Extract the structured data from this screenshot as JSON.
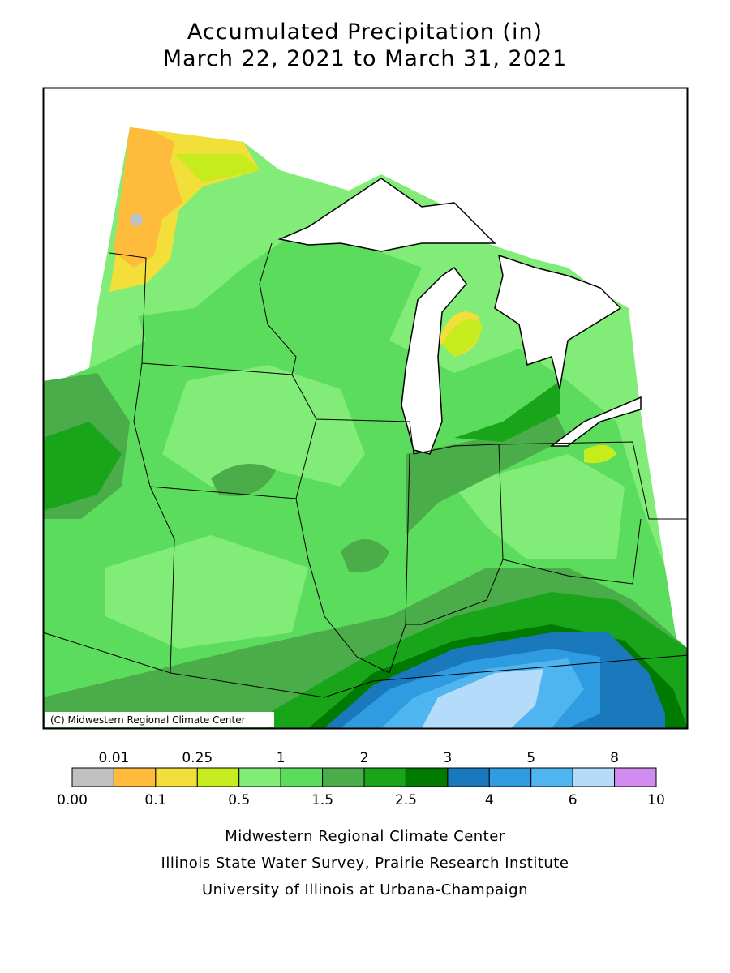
{
  "title": [
    "Accumulated Precipitation (in)",
    "March 22, 2021 to March 31, 2021"
  ],
  "credit": "(C) Midwestern Regional Climate Center",
  "legend": {
    "breaks": [
      {
        "value": 0,
        "label": "0.00"
      },
      0.01,
      0.1,
      0.25,
      0.5,
      1,
      1.5,
      2,
      2.5,
      3,
      4,
      5,
      6,
      8,
      10
    ],
    "colors": [
      "#c0c0c0",
      "#ffbb3c",
      "#f2df3a",
      "#c6ec1e",
      "#82ec78",
      "#5cdc5c",
      "#4aad4a",
      "#19a519",
      "#007a00",
      "#1a78bd",
      "#2f9be0",
      "#4fb5f0",
      "#b4dcfa",
      "#d28cf0"
    ]
  },
  "footer": [
    "Midwestern Regional Climate Center",
    "Illinois State Water Survey, Prairie Research Institute",
    "University of Illinois at Urbana-Champaign"
  ]
}
